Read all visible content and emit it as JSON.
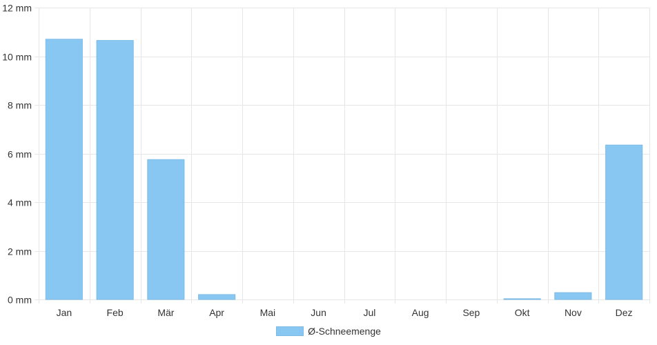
{
  "chart_data": {
    "type": "bar",
    "categories": [
      "Jan",
      "Feb",
      "Mär",
      "Apr",
      "Mai",
      "Jun",
      "Jul",
      "Aug",
      "Sep",
      "Okt",
      "Nov",
      "Dez"
    ],
    "series": [
      {
        "name": "Ø-Schneemenge",
        "values": [
          10.7,
          10.65,
          5.75,
          0.2,
          0,
          0,
          0,
          0,
          0,
          0.03,
          0.28,
          6.35
        ]
      }
    ],
    "ylim": [
      0,
      12
    ],
    "yticks": [
      0,
      2,
      4,
      6,
      8,
      10,
      12
    ],
    "y_unit": "mm",
    "grid": true,
    "legend_position": "bottom",
    "colors": {
      "bar": "#88c7f2",
      "grid": "#e6e6e6"
    }
  }
}
